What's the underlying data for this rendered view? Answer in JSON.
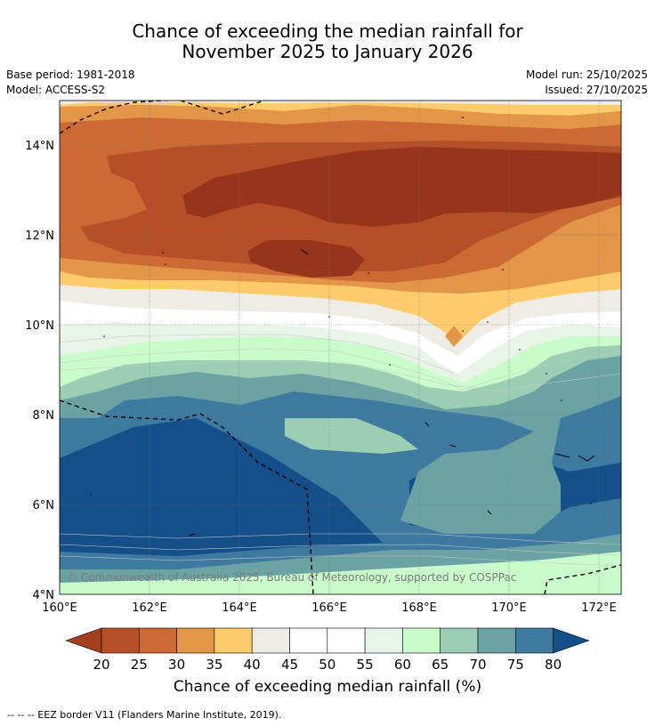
{
  "title_line1": "Chance of exceeding the median rainfall for",
  "title_line2": "November 2025 to January 2026",
  "base_period": "Base period: 1981-2018",
  "model": "Model: ACCESS-S2",
  "model_run": "Model run: 25/10/2025",
  "issued": "Issued: 27/10/2025",
  "copyright": "© Commonwealth of Australia 2025, Bureau of Meteorology, supported by COSPPac",
  "lat_labels": [
    "14°N",
    "12°N",
    "10°N",
    "8°N",
    "6°N",
    "4°N"
  ],
  "lon_labels": [
    "160°E",
    "162°E",
    "164°E",
    "166°E",
    "168°E",
    "170°E",
    "172°E"
  ],
  "colorbar": {
    "title": "Chance of exceeding median rainfall (%)",
    "ticks": [
      "20",
      "25",
      "30",
      "35",
      "40",
      "45",
      "50",
      "55",
      "60",
      "65",
      "70",
      "75",
      "80"
    ],
    "colors": [
      "#a1401f",
      "#b54f28",
      "#cc6a34",
      "#e39548",
      "#fdcb6b",
      "#efebe5",
      "#ffffff",
      "#ffffff",
      "#e8f4e8",
      "#c9fbcb",
      "#9bceb5",
      "#6ba3a4",
      "#3e7a9f",
      "#154f8a"
    ]
  },
  "footer": "--  --  -- EEZ border V11 (Flanders Marine Institute, 2019)."
}
